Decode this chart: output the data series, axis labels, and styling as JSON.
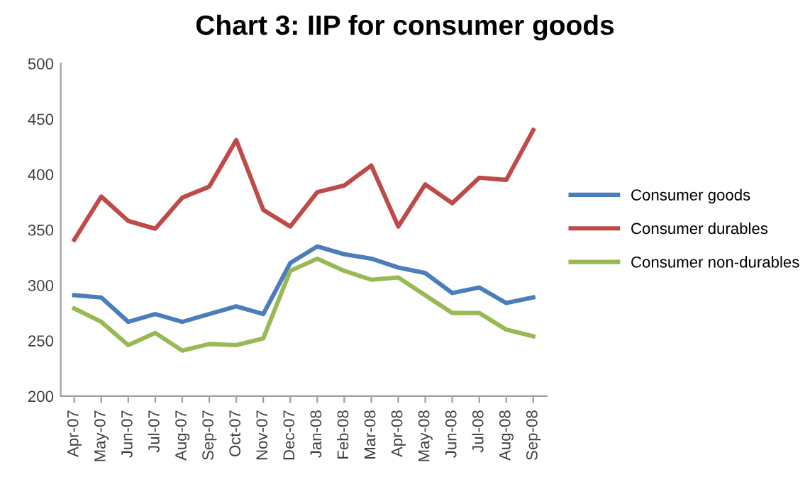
{
  "chart_data": {
    "type": "line",
    "title": "Chart 3: IIP for consumer goods",
    "categories": [
      "Apr-07",
      "May-07",
      "Jun-07",
      "Jul-07",
      "Aug-07",
      "Sep-07",
      "Oct-07",
      "Nov-07",
      "Dec-07",
      "Jan-08",
      "Feb-08",
      "Mar-08",
      "Apr-08",
      "May-08",
      "Jun-08",
      "Jul-08",
      "Aug-08",
      "Sep-08"
    ],
    "series": [
      {
        "name": "Consumer goods",
        "color": "#4a7ebb",
        "values": [
          291,
          289,
          267,
          274,
          267,
          274,
          281,
          274,
          320,
          335,
          328,
          324,
          316,
          311,
          293,
          298,
          284,
          289
        ]
      },
      {
        "name": "Consumer durables",
        "color": "#be4b48",
        "values": [
          341,
          380,
          358,
          351,
          379,
          389,
          431,
          368,
          353,
          384,
          390,
          408,
          353,
          391,
          374,
          397,
          395,
          440
        ]
      },
      {
        "name": "Consumer non-durables",
        "color": "#98b954",
        "values": [
          279,
          267,
          246,
          257,
          241,
          247,
          246,
          252,
          313,
          324,
          313,
          305,
          307,
          291,
          275,
          275,
          260,
          254
        ]
      }
    ],
    "ylim": [
      200,
      500
    ],
    "yticks": [
      200,
      250,
      300,
      350,
      400,
      450,
      500
    ],
    "grid": false,
    "legend": "right",
    "marker": "none",
    "line_style": "solid"
  }
}
